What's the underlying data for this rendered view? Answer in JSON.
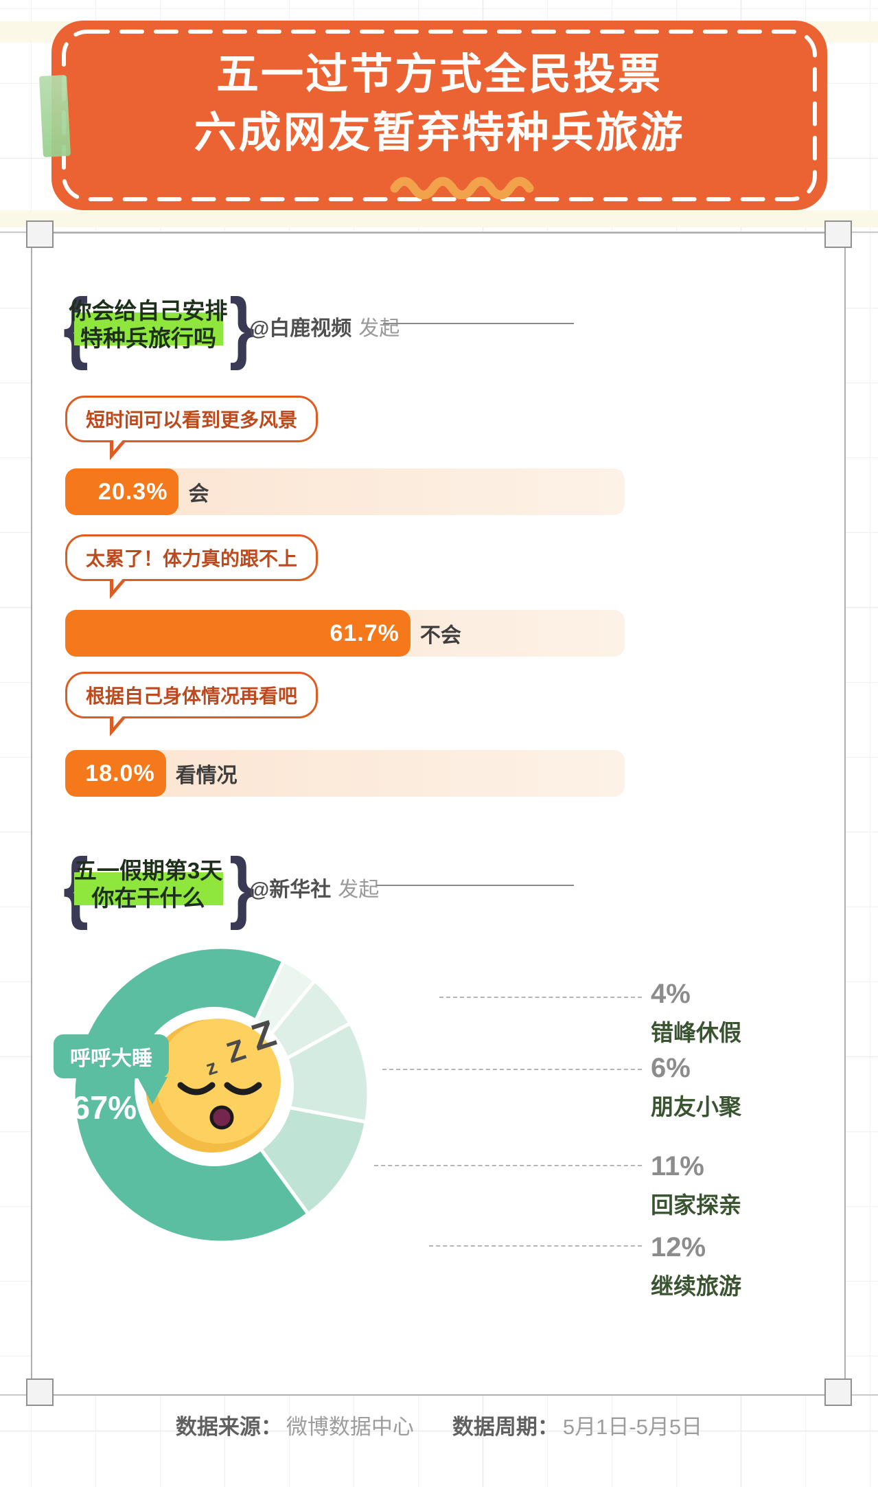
{
  "banner": {
    "line1": "五一过节方式全民投票",
    "line2": "六成网友暂弃特种兵旅游",
    "bg_color": "#EB6332",
    "wave_color": "#F2A24B",
    "tab_color": "#A5D69B"
  },
  "poll1": {
    "question": {
      "line1": "你会给自己安排",
      "line2": "特种兵旅行吗"
    },
    "initiator": "@白鹿视频",
    "initiator_action": "发起",
    "highlight_color": "#8FE73E",
    "bar_color": "#F5781B",
    "options": [
      {
        "comment": "短时间可以看到更多风景",
        "percent_label": "20.3%",
        "answer": "会",
        "value": 20.3
      },
      {
        "comment": "太累了！体力真的跟不上",
        "percent_label": "61.7%",
        "answer": "不会",
        "value": 61.7
      },
      {
        "comment": "根据自己身体情况再看吧",
        "percent_label": "18.0%",
        "answer": "看情况",
        "value": 18.0
      }
    ]
  },
  "poll2": {
    "question": {
      "line1": "五一假期第3天",
      "line2": "你在干什么"
    },
    "initiator": "@新华社",
    "initiator_action": "发起",
    "center_bubble": "呼呼大睡",
    "center_percent": "67%",
    "start_angle_deg": 25,
    "slices": [
      {
        "name": "错峰休假",
        "pct": "4%",
        "value": 4,
        "color": "#EAF6EF"
      },
      {
        "name": "朋友小聚",
        "pct": "6%",
        "value": 6,
        "color": "#DEEFE7"
      },
      {
        "name": "回家探亲",
        "pct": "11%",
        "value": 11,
        "color": "#D3EBE1"
      },
      {
        "name": "继续旅游",
        "pct": "12%",
        "value": 12,
        "color": "#BFE3D4"
      },
      {
        "name": "呼呼大睡",
        "pct": "67%",
        "value": 67,
        "color": "#5CBEA1"
      }
    ]
  },
  "footer": {
    "source_label": "数据来源：",
    "source_value": "微博数据中心",
    "period_label": "数据周期：",
    "period_value": "5月1日-5月5日"
  },
  "chart_data": [
    {
      "type": "bar",
      "title": "你会给自己安排特种兵旅行吗",
      "source": "@白鹿视频 发起",
      "categories": [
        "会",
        "不会",
        "看情况"
      ],
      "values": [
        20.3,
        61.7,
        18.0
      ],
      "annotations": [
        "短时间可以看到更多风景",
        "太累了！体力真的跟不上",
        "根据自己身体情况再看吧"
      ],
      "unit": "%",
      "xlim": [
        0,
        100
      ],
      "orientation": "horizontal",
      "grid": false
    },
    {
      "type": "pie",
      "title": "五一假期第3天你在干什么",
      "source": "@新华社 发起",
      "labels": [
        "呼呼大睡",
        "错峰休假",
        "朋友小聚",
        "回家探亲",
        "继续旅游"
      ],
      "values": [
        67,
        4,
        6,
        11,
        12
      ],
      "highlighted_slice": "呼呼大睡 67%",
      "legend_position": "right"
    }
  ]
}
